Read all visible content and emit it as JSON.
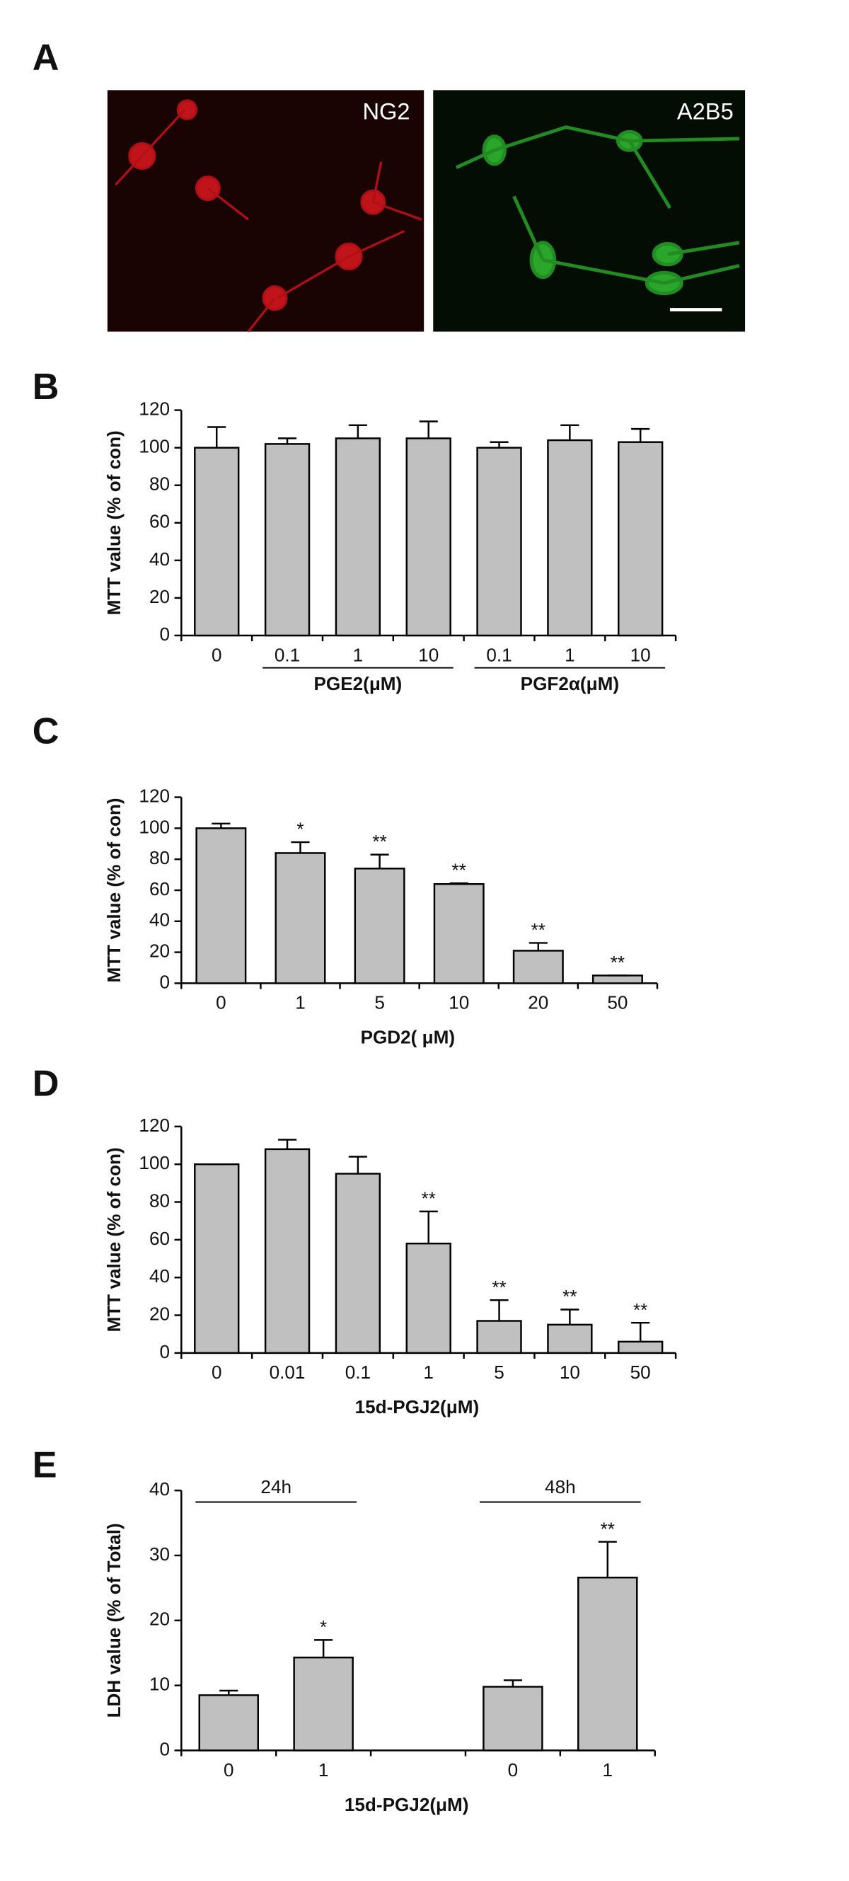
{
  "panel_a": {
    "label": "A",
    "images": [
      {
        "label": "NG2"
      },
      {
        "label": "A2B5"
      }
    ]
  },
  "chart_data": [
    {
      "type": "bar",
      "panel_label": "B",
      "y_label": "MTT value (% of con)",
      "categories": [
        "0",
        "0.1",
        "1",
        "10",
        "0.1",
        "1",
        "10"
      ],
      "groups": [
        null,
        "PGE2(μM)",
        "PGE2(μM)",
        "PGE2(μM)",
        "PGF2α(μM)",
        "PGF2α(μM)",
        "PGF2α(μM)"
      ],
      "group_position": "bottom",
      "values": [
        100,
        102,
        105,
        105,
        100,
        104,
        103
      ],
      "errors": [
        11,
        3,
        7,
        9,
        3,
        8,
        7
      ],
      "color": "#c0c0c0",
      "ylim": [
        0,
        120
      ],
      "yticks": [
        0,
        20,
        40,
        60,
        80,
        100,
        120
      ]
    },
    {
      "type": "bar",
      "panel_label": "C",
      "y_label": "MTT value (% of con)",
      "x_label": "PGD2( μM)",
      "categories": [
        "0",
        "1",
        "5",
        "10",
        "20",
        "50"
      ],
      "values": [
        100,
        84,
        74,
        64,
        21,
        5
      ],
      "errors": [
        3,
        7,
        9,
        0.5,
        5,
        0
      ],
      "annotations": [
        null,
        "*",
        "**",
        "**",
        "**",
        "**"
      ],
      "color": "#c0c0c0",
      "ylim": [
        0,
        120
      ],
      "yticks": [
        0,
        20,
        40,
        60,
        80,
        100,
        120
      ]
    },
    {
      "type": "bar",
      "panel_label": "D",
      "y_label": "MTT value (% of con)",
      "x_label": "15d-PGJ2(μM)",
      "categories": [
        "0",
        "0.01",
        "0.1",
        "1",
        "5",
        "10",
        "50"
      ],
      "values": [
        100,
        108,
        95,
        58,
        17,
        15,
        6
      ],
      "errors": [
        0,
        5,
        9,
        17,
        11,
        8,
        10
      ],
      "annotations": [
        null,
        null,
        null,
        "**",
        "**",
        "**",
        "**"
      ],
      "color": "#c0c0c0",
      "ylim": [
        0,
        120
      ],
      "yticks": [
        0,
        20,
        40,
        60,
        80,
        100,
        120
      ]
    },
    {
      "type": "bar",
      "panel_label": "E",
      "y_label": "LDH value (% of Total)",
      "x_label": "15d-PGJ2(μM)",
      "categories": [
        "0",
        "1",
        null,
        "0",
        "1"
      ],
      "groups": [
        "24h",
        "24h",
        null,
        "48h",
        "48h"
      ],
      "group_position": "top",
      "values": [
        8.5,
        14.3,
        null,
        9.8,
        26.6
      ],
      "errors": [
        0.7,
        2.7,
        null,
        1,
        5.5
      ],
      "annotations": [
        null,
        "*",
        null,
        null,
        "**"
      ],
      "color": "#c0c0c0",
      "ylim": [
        0,
        40
      ],
      "yticks": [
        0,
        10,
        20,
        30,
        40
      ]
    }
  ]
}
